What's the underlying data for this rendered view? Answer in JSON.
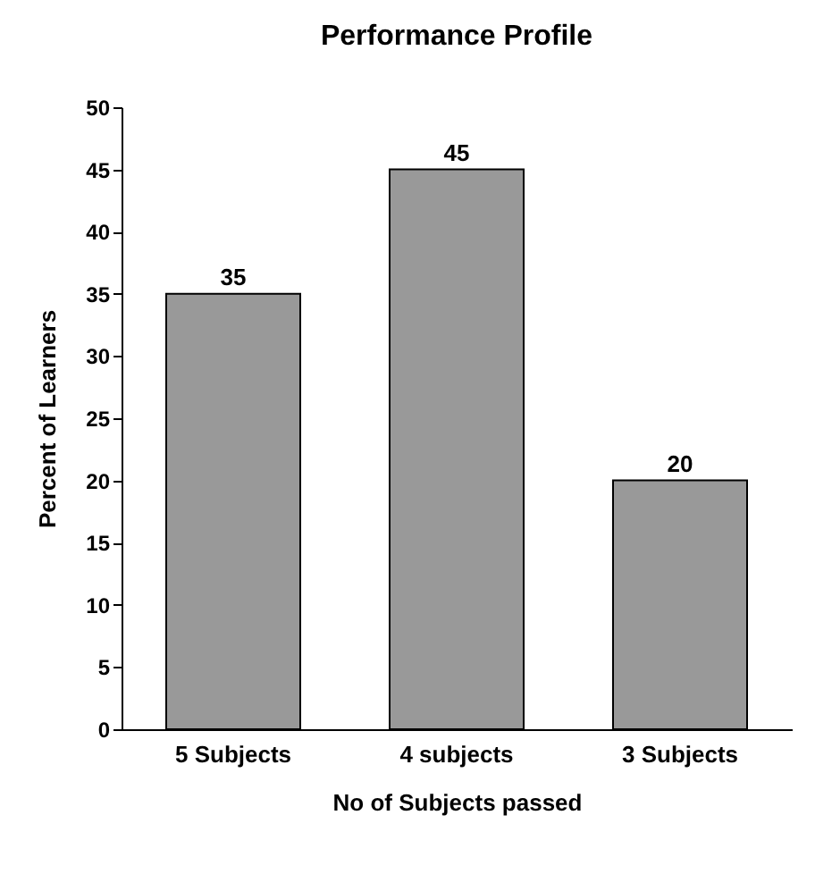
{
  "chart_data": {
    "type": "bar",
    "title": "Performance Profile",
    "xlabel": "No of Subjects passed",
    "ylabel": "Percent of Learners",
    "categories": [
      "5 Subjects",
      "4 subjects",
      "3 Subjects"
    ],
    "values": [
      35,
      45,
      20
    ],
    "color": "#999999",
    "ylim": [
      0,
      50
    ],
    "yticks": [
      0,
      5,
      10,
      15,
      20,
      25,
      30,
      35,
      40,
      45,
      50
    ],
    "grid": false,
    "data_labels": true
  }
}
